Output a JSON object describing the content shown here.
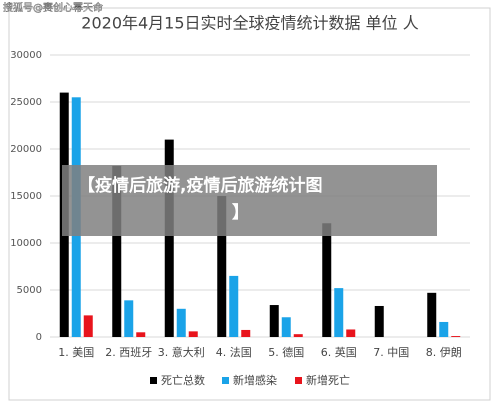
{
  "watermark": "搜狐号@赛创心幂天命",
  "banner": {
    "lines": [
      "【疫情后旅游,疫情后旅游统计图",
      "】"
    ]
  },
  "chart_data": {
    "type": "bar",
    "title": "2020年4月15日实时全球疫情统计数据 单位 人",
    "categories": [
      "1. 美国",
      "2. 西班牙",
      "3. 意大利",
      "4. 法国",
      "5. 德国",
      "6. 英国",
      "7. 中国",
      "8. 伊朗"
    ],
    "series": [
      {
        "name": "死亡总数",
        "color": "#000000",
        "values": [
          26000,
          18200,
          21000,
          15000,
          3400,
          12100,
          3300,
          4700
        ]
      },
      {
        "name": "新增感染",
        "color": "#1aa3e8",
        "values": [
          25500,
          3900,
          3000,
          6500,
          2100,
          5200,
          0,
          1600
        ]
      },
      {
        "name": "新增死亡",
        "color": "#e8141c",
        "values": [
          2300,
          500,
          600,
          750,
          300,
          800,
          0,
          100
        ]
      }
    ],
    "ylim": [
      0,
      30000
    ],
    "yticks": [
      0,
      5000,
      10000,
      15000,
      20000,
      25000,
      30000
    ],
    "grid": true
  }
}
